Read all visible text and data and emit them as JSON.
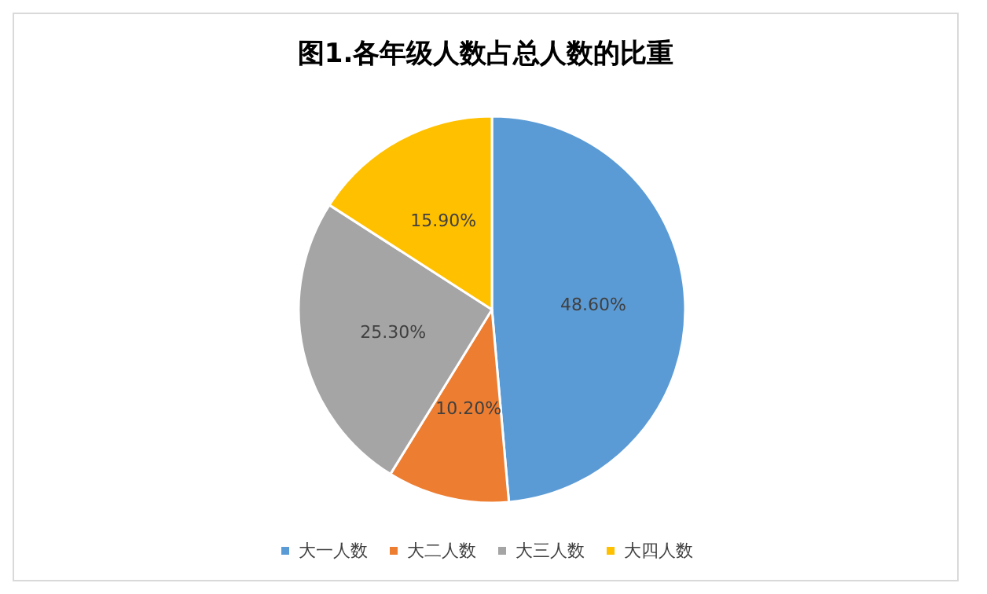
{
  "chart_data": {
    "type": "pie",
    "title": "图1.各年级人数占总人数的比重",
    "categories": [
      "大一人数",
      "大二人数",
      "大三人数",
      "大四人数"
    ],
    "values": [
      48.6,
      10.2,
      25.3,
      15.9
    ],
    "colors": [
      "#5b9bd5",
      "#ed7d31",
      "#a5a5a5",
      "#ffc000"
    ],
    "value_labels": [
      "48.60%",
      "10.20%",
      "25.30%",
      "15.90%"
    ],
    "legend": "bottom"
  }
}
